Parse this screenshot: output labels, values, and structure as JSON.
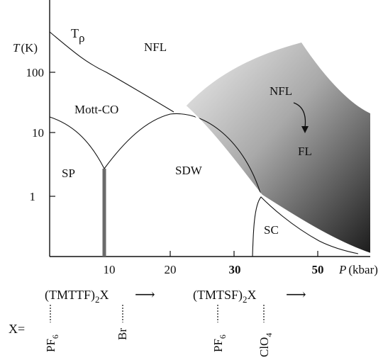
{
  "axes": {
    "y_label_italic": "T",
    "y_label_unit": "(K)",
    "y_ticks": [
      "100",
      "10",
      "1"
    ],
    "x_label_italic": "P",
    "x_label_unit": "(kbar)",
    "x_ticks_light": [
      "10",
      "20"
    ],
    "x_ticks_bold": [
      "30",
      "50"
    ]
  },
  "regions": {
    "t_rho": "T",
    "t_rho_symbol": "ρ",
    "nfl_top": "NFL",
    "mott_co": "Mott-CO",
    "sp": "SP",
    "sdw": "SDW",
    "sc": "SC",
    "nfl_right": "NFL",
    "fl": "FL"
  },
  "families": {
    "tmttf_prefix": "(TMTTF)",
    "tmttf_sub": "2",
    "tmttf_suffix": "X",
    "tmtsf_prefix": "(TMTSF)",
    "tmtsf_sub": "2",
    "tmtsf_suffix": "X",
    "arrow": "⟶"
  },
  "anions": {
    "x_label": "X=",
    "pf6_a_base": "PF",
    "pf6_a_sub": "6",
    "br": "Br",
    "pf6_b_base": "PF",
    "pf6_b_sub": "6",
    "clo4_base": "ClO",
    "clo4_sub": "4"
  },
  "colors": {
    "gradient_light": "#efefef",
    "gradient_dark": "#1c1c1c",
    "sp_line": "#6a6a6a"
  }
}
